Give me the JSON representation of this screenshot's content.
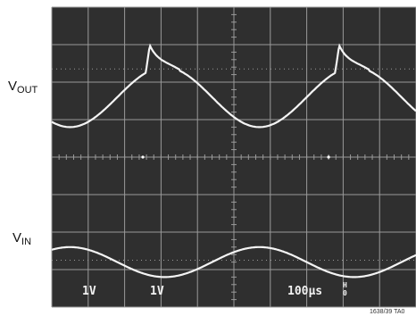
{
  "labels": {
    "vout_main": "V",
    "vout_sub": "OUT",
    "vin_main": "V",
    "vin_sub": "IN"
  },
  "scale": {
    "ch1": "1V",
    "ch2": "1V",
    "timebase": "100µs",
    "timebase_suffix": "H",
    "timebase_suffix2": "0"
  },
  "figure_id": "1638/39 TA0",
  "colors": {
    "screen_bg": "#2f2f2f",
    "grid": "#9a9a9a",
    "trace": "#f4f4f4",
    "ref_marker": "#ffffff"
  },
  "chart_data": {
    "type": "line",
    "x_divisions": 10,
    "y_divisions": 8,
    "xlabel": "",
    "ylabel": "",
    "grid": true,
    "series": [
      {
        "name": "VOUT",
        "period_div": 5.2,
        "phase_div": 0.5,
        "offset_div": 1.6,
        "amplitude_div": 0.8,
        "spike_div": 0.7
      },
      {
        "name": "VIN",
        "period_div": 5.2,
        "phase_div": -0.8,
        "offset_div": -2.8,
        "amplitude_div": 0.4
      }
    ]
  }
}
